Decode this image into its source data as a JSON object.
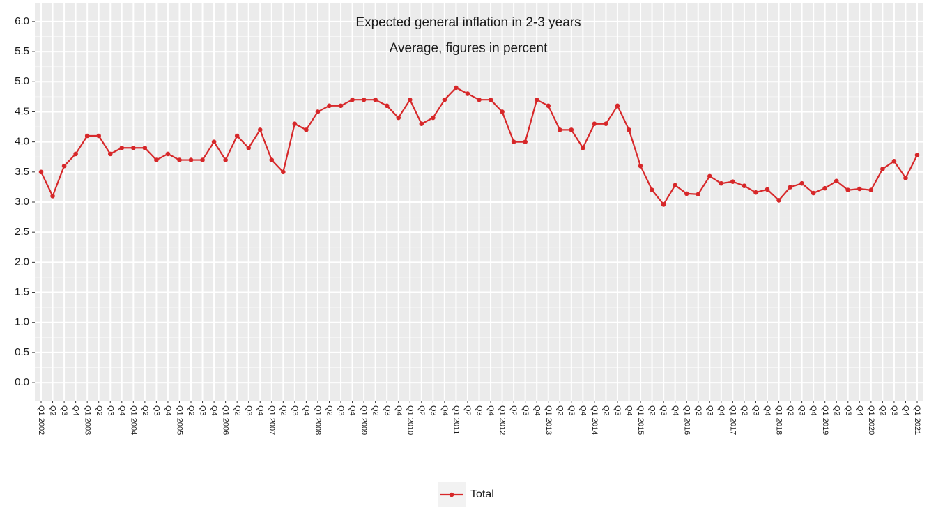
{
  "chart_data": {
    "type": "line",
    "title": "Expected general inflation in 2-3 years",
    "subtitle": "Average, figures in percent",
    "categories": [
      "Q1 2002",
      "Q2",
      "Q3",
      "Q4",
      "Q1 2003",
      "Q2",
      "Q3",
      "Q4",
      "Q1 2004",
      "Q2",
      "Q3",
      "Q4",
      "Q1 2005",
      "Q2",
      "Q3",
      "Q4",
      "Q1 2006",
      "Q2",
      "Q3",
      "Q4",
      "Q1 2007",
      "Q2",
      "Q3",
      "Q4",
      "Q1 2008",
      "Q2",
      "Q3",
      "Q4",
      "Q1 2009",
      "Q2",
      "Q3",
      "Q4",
      "Q1 2010",
      "Q2",
      "Q3",
      "Q4",
      "Q1 2011",
      "Q2",
      "Q3",
      "Q4",
      "Q1 2012",
      "Q2",
      "Q3",
      "Q4",
      "Q1 2013",
      "Q2",
      "Q3",
      "Q4",
      "Q1 2014",
      "Q2",
      "Q3",
      "Q4",
      "Q1 2015",
      "Q2",
      "Q3",
      "Q4",
      "Q1 2016",
      "Q2",
      "Q3",
      "Q4",
      "Q1 2017",
      "Q2",
      "Q3",
      "Q4",
      "Q1 2018",
      "Q2",
      "Q3",
      "Q4",
      "Q1 2019",
      "Q2",
      "Q3",
      "Q4",
      "Q1 2020",
      "Q2",
      "Q3",
      "Q4",
      "Q1 2021"
    ],
    "series": [
      {
        "name": "Total",
        "color": "#d7282a",
        "values": [
          3.5,
          3.1,
          3.6,
          3.8,
          4.1,
          4.1,
          3.8,
          3.9,
          3.9,
          3.9,
          3.7,
          3.8,
          3.7,
          3.7,
          3.7,
          4.0,
          3.7,
          4.1,
          3.9,
          4.2,
          3.7,
          3.5,
          4.3,
          4.2,
          4.5,
          4.6,
          4.6,
          4.7,
          4.7,
          4.7,
          4.6,
          4.4,
          4.7,
          4.3,
          4.4,
          4.7,
          4.9,
          4.8,
          4.7,
          4.7,
          4.5,
          4.0,
          4.0,
          4.7,
          4.6,
          4.2,
          4.2,
          3.9,
          4.3,
          4.3,
          4.6,
          4.2,
          3.6,
          3.2,
          2.96,
          3.28,
          3.14,
          3.13,
          3.43,
          3.31,
          3.34,
          3.27,
          3.16,
          3.21,
          3.03,
          3.25,
          3.31,
          3.15,
          3.23,
          3.35,
          3.2,
          3.22,
          3.2,
          3.55,
          3.68,
          3.4,
          3.78
        ]
      }
    ],
    "ylim": [
      -0.3,
      6.3
    ],
    "yticks": [
      {
        "value": 0,
        "label": "0.0"
      },
      0.5,
      {
        "value": 1,
        "label": "1.0"
      },
      1.5,
      {
        "value": 2,
        "label": "2.0"
      },
      2.5,
      {
        "value": 3,
        "label": "3.0"
      },
      3.5,
      {
        "value": 4,
        "label": "4.0"
      },
      4.5,
      {
        "value": 5,
        "label": "5.0"
      },
      5.5,
      {
        "value": 6,
        "label": "6.0"
      }
    ],
    "grid": true,
    "legend": "bottom"
  }
}
